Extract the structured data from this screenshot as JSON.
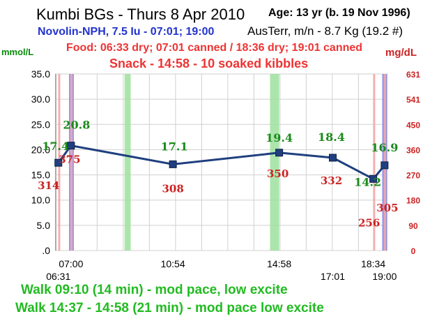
{
  "header": {
    "title": "Kumbi BGs - Thurs 8 Apr 2010",
    "insulin": "Novolin-NPH, 7.5 Iu - 07:01; 19:00",
    "age": "Age: 13 yr (b. 19 Nov 1996)",
    "weight": "AusTerr, m/n - 8.7 Kg (19.2 #)",
    "food": "Food: 06:33 dry; 07:01 canned / 18:36 dry; 19:01 canned",
    "snack": "Snack - 14:58 - 10 soaked kibbles"
  },
  "footer": {
    "walk1": "Walk 09:10  (14 min) - mod pace, low excite",
    "walk2": "Walk 14:37 - 14:58 (21 min) - mod pace low excite"
  },
  "chart_data": {
    "type": "line",
    "ylabel_left": "mmol/L",
    "ylabel_right": "mg/dL",
    "xlim": [
      "06:25",
      "19:05"
    ],
    "ylim": [
      0,
      35
    ],
    "y_ticks": [
      "35.0",
      "30.0",
      "25.0",
      "20.0",
      "15.0",
      "10.0",
      "5.0",
      ".0"
    ],
    "y_right_ticks": [
      "631",
      "541",
      "450",
      "360",
      "270",
      "180",
      "90",
      "0"
    ],
    "x_ticks_top_row": [
      "07:00",
      "10:54",
      "14:58",
      "18:34"
    ],
    "x_ticks_bottom_row": [
      "06:31",
      "17:01",
      "19:00"
    ],
    "grid": true,
    "series": [
      {
        "color": "#1f3f7f",
        "points": [
          {
            "time": "06:31",
            "mmol": 17.4,
            "mgdl": 314,
            "mmol_label": "17.4",
            "mgdl_label": "314"
          },
          {
            "time": "07:00",
            "mmol": 20.8,
            "mgdl": 375,
            "mmol_label": "20.8",
            "mgdl_label": "375"
          },
          {
            "time": "10:54",
            "mmol": 17.1,
            "mgdl": 308,
            "mmol_label": "17.1",
            "mgdl_label": "308"
          },
          {
            "time": "14:58",
            "mmol": 19.4,
            "mgdl": 350,
            "mmol_label": "19.4",
            "mgdl_label": "350"
          },
          {
            "time": "17:01",
            "mmol": 18.4,
            "mgdl": 332,
            "mmol_label": "18.4",
            "mgdl_label": "332"
          },
          {
            "time": "18:34",
            "mmol": 14.2,
            "mgdl": 256,
            "mmol_label": "14.2",
            "mgdl_label": "256"
          },
          {
            "time": "19:00",
            "mmol": 16.9,
            "mgdl": 305,
            "mmol_label": "16.9",
            "mgdl_label": "305"
          }
        ]
      }
    ],
    "markers": {
      "food": [
        "06:33",
        "07:01",
        "18:36",
        "19:01"
      ],
      "insulin": [
        "07:01",
        "19:00"
      ],
      "walks": [
        [
          "09:03",
          "09:17"
        ],
        [
          "14:37",
          "14:58"
        ]
      ]
    },
    "colors": {
      "line": "#1f3f7f",
      "mmol_text": "#1a8a1a",
      "mgdl_text": "#cc2222",
      "food_band": "#f4a6a6",
      "insulin_band": "#8a8ae8",
      "walk_band": "#9de09d"
    }
  }
}
